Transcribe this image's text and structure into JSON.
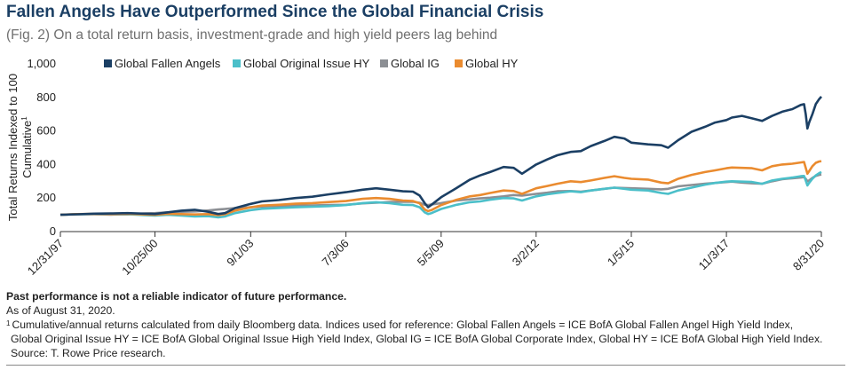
{
  "title": "Fallen Angels Have Outperformed Since the Global Financial Crisis",
  "subtitle": "(Fig. 2) On a total return basis, investment-grade and high yield peers lag behind",
  "notes": {
    "disclaimer": "Past performance is not a reliable indicator of future performance.",
    "as_of": "As of August 31, 2020.",
    "footnote_mark": "1",
    "footnote_line1": "Cumulative/annual returns calculated from daily Bloomberg data. Indices used for reference: Global Fallen Angels = ICE BofA Global Fallen Angel High Yield Index,",
    "footnote_line2": "Global Original Issue HY = ICE BofA Global Original Issue High Yield Index, Global IG = ICE BofA Global Corporate Index, Global HY = ICE BofA Global High Yield Index.",
    "source": "Source: T. Rowe Price research."
  },
  "chart_data": {
    "type": "line",
    "ylabel_line1": "Total Returns Indexed to 100",
    "ylabel_line2": "Cumulative",
    "ylabel_sup": "1",
    "ylim": [
      0,
      1000
    ],
    "yticks": [
      0,
      200,
      400,
      600,
      800,
      1000
    ],
    "ytick_labels": [
      "0",
      "200",
      "400",
      "600",
      "800",
      "1,000"
    ],
    "xlim": [
      1997.997,
      2020.666
    ],
    "xticks": [
      1997.997,
      2000.815,
      2003.666,
      2006.504,
      2009.34,
      2012.169,
      2015.005,
      2017.838,
      2020.666
    ],
    "xtick_labels": [
      "12/31/97",
      "10/25/00",
      "9/1/03",
      "7/3/06",
      "5/5/09",
      "3/2/12",
      "1/5/15",
      "11/3/17",
      "8/31/20"
    ],
    "grid": false,
    "legend_position": "top",
    "series": [
      {
        "name": "Global Fallen Angels",
        "color": "#1b3f64",
        "points": [
          [
            1997.997,
            100
          ],
          [
            1998.5,
            103
          ],
          [
            1999.0,
            107
          ],
          [
            1999.5,
            108
          ],
          [
            2000.0,
            110
          ],
          [
            2000.5,
            107
          ],
          [
            2000.815,
            105
          ],
          [
            2001.2,
            115
          ],
          [
            2001.6,
            125
          ],
          [
            2002.0,
            130
          ],
          [
            2002.4,
            118
          ],
          [
            2002.7,
            105
          ],
          [
            2002.9,
            110
          ],
          [
            2003.2,
            140
          ],
          [
            2003.666,
            165
          ],
          [
            2004.0,
            180
          ],
          [
            2004.5,
            188
          ],
          [
            2005.0,
            200
          ],
          [
            2005.5,
            208
          ],
          [
            2006.0,
            222
          ],
          [
            2006.504,
            235
          ],
          [
            2007.0,
            250
          ],
          [
            2007.4,
            258
          ],
          [
            2007.8,
            250
          ],
          [
            2008.2,
            240
          ],
          [
            2008.5,
            238
          ],
          [
            2008.7,
            215
          ],
          [
            2008.85,
            170
          ],
          [
            2008.95,
            145
          ],
          [
            2009.05,
            160
          ],
          [
            2009.34,
            205
          ],
          [
            2009.8,
            260
          ],
          [
            2010.2,
            310
          ],
          [
            2010.5,
            335
          ],
          [
            2010.8,
            355
          ],
          [
            2011.2,
            385
          ],
          [
            2011.5,
            380
          ],
          [
            2011.75,
            345
          ],
          [
            2012.169,
            400
          ],
          [
            2012.5,
            430
          ],
          [
            2012.8,
            455
          ],
          [
            2013.2,
            475
          ],
          [
            2013.5,
            480
          ],
          [
            2013.8,
            510
          ],
          [
            2014.2,
            540
          ],
          [
            2014.5,
            565
          ],
          [
            2014.8,
            555
          ],
          [
            2015.005,
            530
          ],
          [
            2015.5,
            520
          ],
          [
            2015.9,
            515
          ],
          [
            2016.1,
            500
          ],
          [
            2016.4,
            545
          ],
          [
            2016.8,
            595
          ],
          [
            2017.2,
            625
          ],
          [
            2017.5,
            650
          ],
          [
            2017.838,
            665
          ],
          [
            2018.0,
            680
          ],
          [
            2018.3,
            690
          ],
          [
            2018.6,
            675
          ],
          [
            2018.9,
            660
          ],
          [
            2019.2,
            690
          ],
          [
            2019.5,
            715
          ],
          [
            2019.8,
            730
          ],
          [
            2020.05,
            755
          ],
          [
            2020.15,
            760
          ],
          [
            2020.2,
            700
          ],
          [
            2020.25,
            615
          ],
          [
            2020.3,
            650
          ],
          [
            2020.4,
            700
          ],
          [
            2020.5,
            760
          ],
          [
            2020.6,
            790
          ],
          [
            2020.666,
            805
          ]
        ]
      },
      {
        "name": "Global Original Issue HY",
        "color": "#4bbfc9",
        "points": [
          [
            1997.997,
            100
          ],
          [
            1998.5,
            103
          ],
          [
            1999.0,
            105
          ],
          [
            1999.5,
            104
          ],
          [
            2000.0,
            103
          ],
          [
            2000.5,
            98
          ],
          [
            2000.815,
            95
          ],
          [
            2001.2,
            100
          ],
          [
            2001.6,
            95
          ],
          [
            2002.0,
            90
          ],
          [
            2002.4,
            92
          ],
          [
            2002.7,
            85
          ],
          [
            2002.9,
            90
          ],
          [
            2003.2,
            110
          ],
          [
            2003.666,
            128
          ],
          [
            2004.0,
            136
          ],
          [
            2004.5,
            140
          ],
          [
            2005.0,
            145
          ],
          [
            2005.5,
            148
          ],
          [
            2006.0,
            152
          ],
          [
            2006.504,
            158
          ],
          [
            2007.0,
            170
          ],
          [
            2007.4,
            175
          ],
          [
            2007.8,
            170
          ],
          [
            2008.2,
            160
          ],
          [
            2008.5,
            158
          ],
          [
            2008.7,
            145
          ],
          [
            2008.85,
            115
          ],
          [
            2008.95,
            105
          ],
          [
            2009.05,
            110
          ],
          [
            2009.34,
            135
          ],
          [
            2009.8,
            160
          ],
          [
            2010.2,
            175
          ],
          [
            2010.5,
            180
          ],
          [
            2010.8,
            190
          ],
          [
            2011.2,
            200
          ],
          [
            2011.5,
            198
          ],
          [
            2011.75,
            185
          ],
          [
            2012.169,
            210
          ],
          [
            2012.5,
            222
          ],
          [
            2012.8,
            230
          ],
          [
            2013.2,
            240
          ],
          [
            2013.5,
            235
          ],
          [
            2013.8,
            245
          ],
          [
            2014.2,
            255
          ],
          [
            2014.5,
            262
          ],
          [
            2014.8,
            255
          ],
          [
            2015.005,
            250
          ],
          [
            2015.5,
            245
          ],
          [
            2015.9,
            230
          ],
          [
            2016.1,
            225
          ],
          [
            2016.4,
            245
          ],
          [
            2016.8,
            262
          ],
          [
            2017.2,
            280
          ],
          [
            2017.5,
            290
          ],
          [
            2017.838,
            298
          ],
          [
            2018.0,
            300
          ],
          [
            2018.3,
            298
          ],
          [
            2018.6,
            296
          ],
          [
            2018.9,
            285
          ],
          [
            2019.2,
            305
          ],
          [
            2019.5,
            315
          ],
          [
            2019.8,
            322
          ],
          [
            2020.05,
            330
          ],
          [
            2020.15,
            332
          ],
          [
            2020.2,
            305
          ],
          [
            2020.25,
            275
          ],
          [
            2020.3,
            290
          ],
          [
            2020.4,
            315
          ],
          [
            2020.5,
            335
          ],
          [
            2020.6,
            348
          ],
          [
            2020.666,
            355
          ]
        ]
      },
      {
        "name": "Global IG",
        "color": "#8c8f94",
        "points": [
          [
            1997.997,
            100
          ],
          [
            1998.5,
            104
          ],
          [
            1999.0,
            103
          ],
          [
            1999.5,
            101
          ],
          [
            2000.0,
            102
          ],
          [
            2000.5,
            108
          ],
          [
            2000.815,
            110
          ],
          [
            2001.2,
            115
          ],
          [
            2001.6,
            118
          ],
          [
            2002.0,
            120
          ],
          [
            2002.4,
            126
          ],
          [
            2002.7,
            132
          ],
          [
            2002.9,
            135
          ],
          [
            2003.2,
            140
          ],
          [
            2003.666,
            145
          ],
          [
            2004.0,
            150
          ],
          [
            2004.5,
            152
          ],
          [
            2005.0,
            155
          ],
          [
            2005.5,
            156
          ],
          [
            2006.0,
            158
          ],
          [
            2006.504,
            160
          ],
          [
            2007.0,
            168
          ],
          [
            2007.4,
            172
          ],
          [
            2007.8,
            176
          ],
          [
            2008.2,
            178
          ],
          [
            2008.5,
            178
          ],
          [
            2008.7,
            172
          ],
          [
            2008.85,
            160
          ],
          [
            2008.95,
            158
          ],
          [
            2009.05,
            162
          ],
          [
            2009.34,
            170
          ],
          [
            2009.8,
            185
          ],
          [
            2010.2,
            192
          ],
          [
            2010.5,
            198
          ],
          [
            2010.8,
            202
          ],
          [
            2011.2,
            210
          ],
          [
            2011.5,
            218
          ],
          [
            2011.75,
            215
          ],
          [
            2012.169,
            225
          ],
          [
            2012.5,
            232
          ],
          [
            2012.8,
            240
          ],
          [
            2013.2,
            242
          ],
          [
            2013.5,
            238
          ],
          [
            2013.8,
            245
          ],
          [
            2014.2,
            255
          ],
          [
            2014.5,
            262
          ],
          [
            2014.8,
            260
          ],
          [
            2015.005,
            258
          ],
          [
            2015.5,
            255
          ],
          [
            2015.9,
            252
          ],
          [
            2016.1,
            255
          ],
          [
            2016.4,
            270
          ],
          [
            2016.8,
            278
          ],
          [
            2017.2,
            285
          ],
          [
            2017.5,
            290
          ],
          [
            2017.838,
            295
          ],
          [
            2018.0,
            298
          ],
          [
            2018.3,
            292
          ],
          [
            2018.6,
            288
          ],
          [
            2018.9,
            285
          ],
          [
            2019.2,
            300
          ],
          [
            2019.5,
            312
          ],
          [
            2019.8,
            318
          ],
          [
            2020.05,
            322
          ],
          [
            2020.15,
            325
          ],
          [
            2020.2,
            315
          ],
          [
            2020.25,
            300
          ],
          [
            2020.3,
            305
          ],
          [
            2020.4,
            320
          ],
          [
            2020.5,
            332
          ],
          [
            2020.6,
            338
          ],
          [
            2020.666,
            340
          ]
        ]
      },
      {
        "name": "Global HY",
        "color": "#ea8b2f",
        "points": [
          [
            1997.997,
            100
          ],
          [
            1998.5,
            104
          ],
          [
            1999.0,
            106
          ],
          [
            1999.5,
            105
          ],
          [
            2000.0,
            106
          ],
          [
            2000.5,
            102
          ],
          [
            2000.815,
            100
          ],
          [
            2001.2,
            106
          ],
          [
            2001.6,
            104
          ],
          [
            2002.0,
            102
          ],
          [
            2002.4,
            104
          ],
          [
            2002.7,
            98
          ],
          [
            2002.9,
            103
          ],
          [
            2003.2,
            125
          ],
          [
            2003.666,
            145
          ],
          [
            2004.0,
            155
          ],
          [
            2004.5,
            160
          ],
          [
            2005.0,
            166
          ],
          [
            2005.5,
            170
          ],
          [
            2006.0,
            176
          ],
          [
            2006.504,
            182
          ],
          [
            2007.0,
            195
          ],
          [
            2007.4,
            200
          ],
          [
            2007.8,
            195
          ],
          [
            2008.2,
            185
          ],
          [
            2008.5,
            182
          ],
          [
            2008.7,
            168
          ],
          [
            2008.85,
            132
          ],
          [
            2008.95,
            122
          ],
          [
            2009.05,
            128
          ],
          [
            2009.34,
            158
          ],
          [
            2009.8,
            190
          ],
          [
            2010.2,
            210
          ],
          [
            2010.5,
            218
          ],
          [
            2010.8,
            230
          ],
          [
            2011.2,
            245
          ],
          [
            2011.5,
            242
          ],
          [
            2011.75,
            225
          ],
          [
            2012.169,
            258
          ],
          [
            2012.5,
            272
          ],
          [
            2012.8,
            285
          ],
          [
            2013.2,
            300
          ],
          [
            2013.5,
            295
          ],
          [
            2013.8,
            305
          ],
          [
            2014.2,
            320
          ],
          [
            2014.5,
            330
          ],
          [
            2014.8,
            320
          ],
          [
            2015.005,
            315
          ],
          [
            2015.5,
            310
          ],
          [
            2015.9,
            292
          ],
          [
            2016.1,
            288
          ],
          [
            2016.4,
            315
          ],
          [
            2016.8,
            338
          ],
          [
            2017.2,
            355
          ],
          [
            2017.5,
            365
          ],
          [
            2017.838,
            378
          ],
          [
            2018.0,
            382
          ],
          [
            2018.3,
            380
          ],
          [
            2018.6,
            378
          ],
          [
            2018.9,
            365
          ],
          [
            2019.2,
            390
          ],
          [
            2019.5,
            400
          ],
          [
            2019.8,
            405
          ],
          [
            2020.05,
            412
          ],
          [
            2020.15,
            415
          ],
          [
            2020.2,
            380
          ],
          [
            2020.25,
            345
          ],
          [
            2020.3,
            360
          ],
          [
            2020.4,
            390
          ],
          [
            2020.5,
            410
          ],
          [
            2020.6,
            418
          ],
          [
            2020.666,
            420
          ]
        ]
      }
    ]
  }
}
